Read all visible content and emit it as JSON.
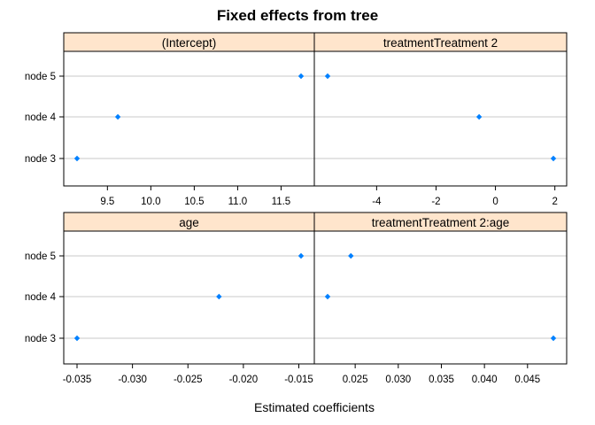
{
  "chart_data": {
    "type": "scatter",
    "title": "Fixed effects from tree",
    "xlabel": "Estimated coefficients",
    "categories": [
      "node 3",
      "node 4",
      "node 5"
    ],
    "strip_fill": "#ffe5cc",
    "point_color": "#0080ff",
    "grid": true,
    "panels": [
      {
        "name": "(Intercept)",
        "values": [
          9.15,
          9.62,
          11.73
        ],
        "xlim": [
          9.15,
          11.73
        ],
        "ticks": [
          9.5,
          10.0,
          10.5,
          11.0,
          11.5
        ],
        "tick_labels": [
          "9.5",
          "10.0",
          "10.5",
          "11.0",
          "11.5"
        ]
      },
      {
        "name": "treatmentTreatment 2",
        "values": [
          1.95,
          -0.55,
          -5.65
        ],
        "xlim": [
          -5.65,
          1.95
        ],
        "ticks": [
          -4,
          -2,
          0,
          2
        ],
        "tick_labels": [
          "-4",
          "-2",
          "0",
          "2"
        ]
      },
      {
        "name": "age",
        "values": [
          -0.035,
          -0.0222,
          -0.0148
        ],
        "xlim": [
          -0.035,
          -0.0148
        ],
        "ticks": [
          -0.035,
          -0.03,
          -0.025,
          -0.02,
          -0.015
        ],
        "tick_labels": [
          "-0.035",
          "-0.030",
          "-0.025",
          "-0.020",
          "-0.015"
        ]
      },
      {
        "name": "treatmentTreatment 2:age",
        "values": [
          0.048,
          0.0218,
          0.0245
        ],
        "xlim": [
          0.0218,
          0.048
        ],
        "ticks": [
          0.025,
          0.03,
          0.035,
          0.04,
          0.045
        ],
        "tick_labels": [
          "0.025",
          "0.030",
          "0.035",
          "0.040",
          "0.045"
        ]
      }
    ]
  }
}
